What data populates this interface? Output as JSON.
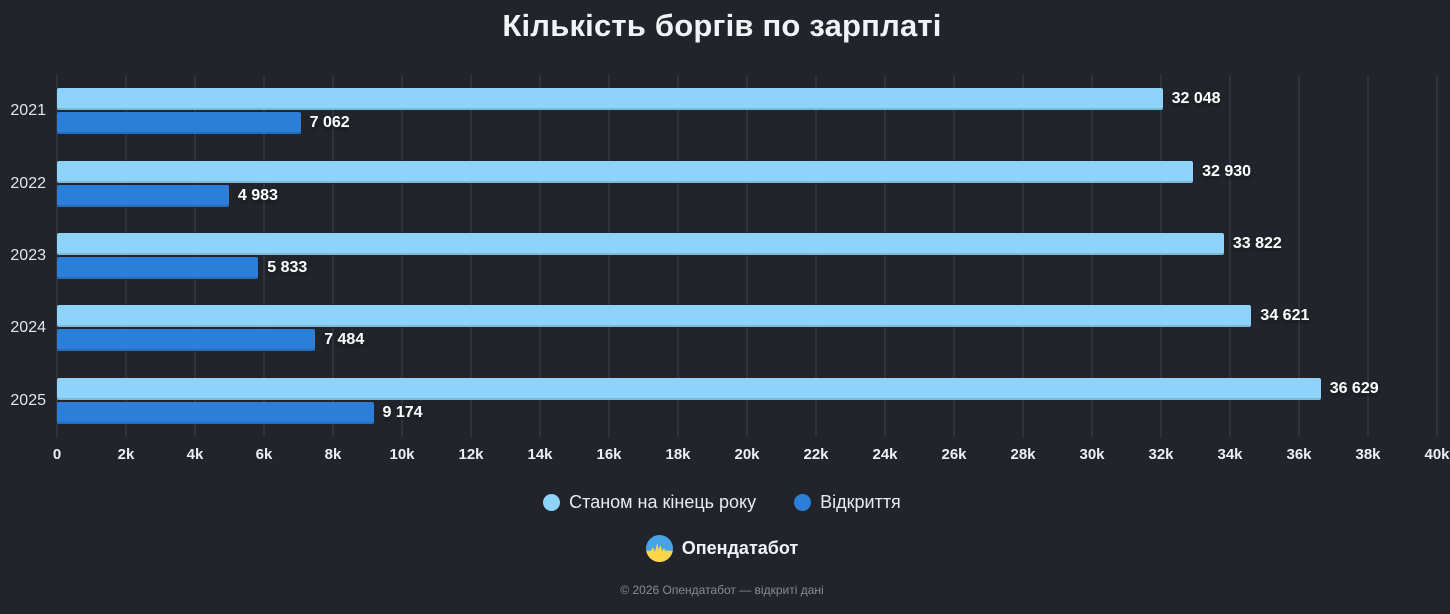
{
  "title": "Кількість боргів по зарплаті",
  "chart_data": {
    "type": "bar",
    "orientation": "horizontal",
    "title": "Кількість боргів по зарплаті",
    "categories": [
      "2021",
      "2022",
      "2023",
      "2024",
      "2025"
    ],
    "series": [
      {
        "name": "Станом на кінець року",
        "color": "#8dd3fa",
        "values": [
          32048,
          32930,
          33822,
          34621,
          36629
        ],
        "labels": [
          "32 048",
          "32 930",
          "33 822",
          "34 621",
          "36 629"
        ]
      },
      {
        "name": "Відкриття",
        "color": "#2c7ed8",
        "values": [
          7062,
          4983,
          5833,
          7484,
          9174
        ],
        "labels": [
          "7 062",
          "4 983",
          "5 833",
          "7 484",
          "9 174"
        ]
      }
    ],
    "xlim": [
      0,
      40000
    ],
    "x_tick_values": [
      0,
      2000,
      4000,
      6000,
      8000,
      10000,
      12000,
      14000,
      16000,
      18000,
      20000,
      22000,
      24000,
      26000,
      28000,
      30000,
      32000,
      34000,
      36000,
      38000,
      40000
    ],
    "x_ticks": [
      "0",
      "2k",
      "4k",
      "6k",
      "8k",
      "10k",
      "12k",
      "14k",
      "16k",
      "18k",
      "20k",
      "22k",
      "24k",
      "26k",
      "28k",
      "30k",
      "32k",
      "34k",
      "36k",
      "38k",
      "40k"
    ],
    "grid": true,
    "legend_position": "bottom"
  },
  "legend": {
    "items": [
      {
        "label": "Станом на кінець року",
        "color": "#8dd3fa"
      },
      {
        "label": "Відкриття",
        "color": "#2c7ed8"
      }
    ]
  },
  "footer": {
    "brand": "Опендатабот",
    "copyright": "© 2026 Опендатабот — відкриті дані",
    "logo_colors": {
      "top": "#47a3e8",
      "bottom": "#ffd54a"
    }
  },
  "colors": {
    "background": "#21252b",
    "gridline": "#3f434a",
    "text": "#eef1f4",
    "muted": "#878d94"
  }
}
